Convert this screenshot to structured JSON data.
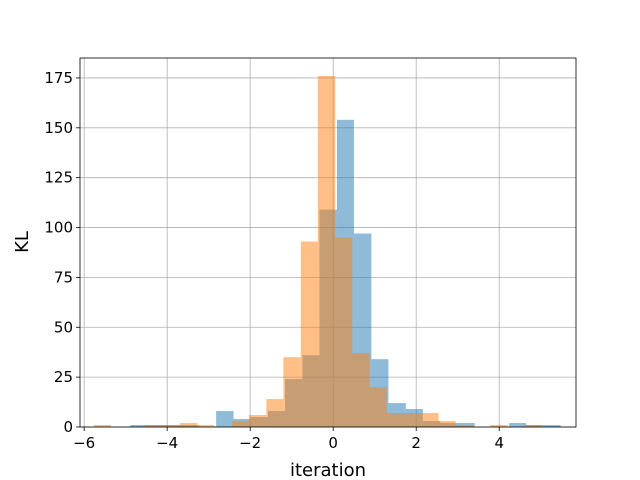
{
  "chart_data": {
    "type": "bar",
    "title": "",
    "xlabel": "iteration",
    "ylabel": "KL",
    "xlim": [
      -6.1,
      5.85
    ],
    "ylim": [
      0,
      185
    ],
    "xticks": [
      -6,
      -4,
      -2,
      0,
      2,
      4
    ],
    "xtick_labels": [
      "−6",
      "−4",
      "−2",
      "0",
      "2",
      "4"
    ],
    "yticks": [
      0,
      25,
      50,
      75,
      100,
      125,
      150,
      175
    ],
    "ytick_labels": [
      "0",
      "25",
      "50",
      "75",
      "100",
      "125",
      "150",
      "175"
    ],
    "grid": true,
    "legend": "none",
    "colors": {
      "series_blue": "#1f77b4",
      "series_orange": "#ff7f0e",
      "series_opacity": 0.5
    },
    "series": [
      {
        "bins": [
          [
            -4.89,
            -4.48,
            1
          ],
          [
            -4.48,
            -4.06,
            1
          ],
          [
            -4.06,
            -3.65,
            1
          ],
          [
            -3.65,
            -3.23,
            1
          ],
          [
            -2.82,
            -2.4,
            8
          ],
          [
            -2.4,
            -1.99,
            4
          ],
          [
            -1.99,
            -1.57,
            5
          ],
          [
            -1.57,
            -1.16,
            8
          ],
          [
            -1.16,
            -0.74,
            24
          ],
          [
            -0.74,
            -0.33,
            36
          ],
          [
            -0.33,
            0.09,
            109
          ],
          [
            0.09,
            0.5,
            154
          ],
          [
            0.5,
            0.92,
            97
          ],
          [
            0.92,
            1.33,
            34
          ],
          [
            1.33,
            1.75,
            12
          ],
          [
            1.75,
            2.16,
            9
          ],
          [
            2.16,
            2.58,
            3
          ],
          [
            2.58,
            2.99,
            2
          ],
          [
            2.99,
            3.41,
            2
          ],
          [
            4.24,
            4.65,
            2
          ],
          [
            4.65,
            5.07,
            1
          ],
          [
            5.07,
            5.48,
            1
          ]
        ]
      },
      {
        "bins": [
          [
            -5.76,
            -5.35,
            1
          ],
          [
            -4.52,
            -4.1,
            1
          ],
          [
            -4.1,
            -3.69,
            1
          ],
          [
            -3.69,
            -3.27,
            2
          ],
          [
            -3.27,
            -2.86,
            1
          ],
          [
            -2.44,
            -2.03,
            3
          ],
          [
            -2.03,
            -1.61,
            6
          ],
          [
            -1.61,
            -1.2,
            14
          ],
          [
            -1.2,
            -0.78,
            35
          ],
          [
            -0.78,
            -0.37,
            93
          ],
          [
            -0.37,
            0.05,
            176
          ],
          [
            0.05,
            0.46,
            95
          ],
          [
            0.46,
            0.88,
            37
          ],
          [
            0.88,
            1.29,
            20
          ],
          [
            1.29,
            1.71,
            7
          ],
          [
            1.71,
            2.12,
            7
          ],
          [
            2.12,
            2.54,
            7
          ],
          [
            2.54,
            2.95,
            3
          ],
          [
            2.95,
            3.37,
            1
          ],
          [
            3.78,
            4.2,
            1
          ],
          [
            4.61,
            5.03,
            1
          ]
        ]
      }
    ]
  }
}
